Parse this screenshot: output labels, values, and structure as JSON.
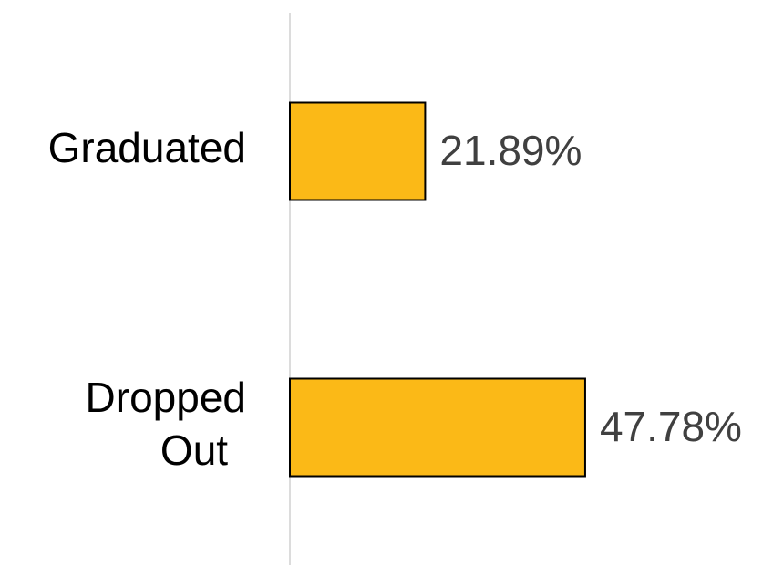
{
  "chart_data": {
    "type": "bar",
    "orientation": "horizontal",
    "categories": [
      "Graduated",
      "Dropped Out"
    ],
    "values": [
      21.89,
      47.78
    ],
    "value_labels": [
      "21.89%",
      "47.78%"
    ],
    "color": "#fbb917"
  }
}
